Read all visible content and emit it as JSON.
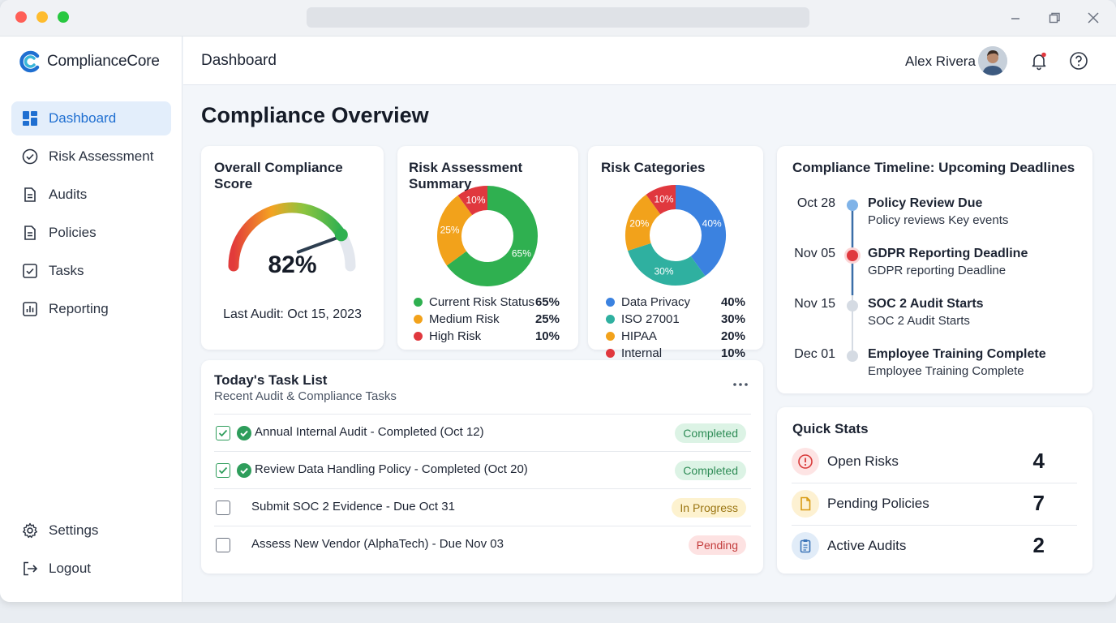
{
  "app": {
    "brand": "ComplianceCore",
    "header_title": "Dashboard",
    "user_name": "Alex Rivera"
  },
  "sidebar": {
    "items": [
      {
        "label": "Dashboard",
        "icon": "grid-icon",
        "active": true
      },
      {
        "label": "Risk Assessment",
        "icon": "check-circle-icon"
      },
      {
        "label": "Audits",
        "icon": "document-icon"
      },
      {
        "label": "Policies",
        "icon": "document-icon"
      },
      {
        "label": "Tasks",
        "icon": "checkbox-icon"
      },
      {
        "label": "Reporting",
        "icon": "bar-chart-icon"
      }
    ],
    "bottom": [
      {
        "label": "Settings",
        "icon": "gear-icon"
      },
      {
        "label": "Logout",
        "icon": "logout-icon"
      }
    ]
  },
  "page": {
    "title": "Compliance Overview"
  },
  "score_card": {
    "title": "Overall Compliance Score",
    "value": "82%",
    "score": 82,
    "last_audit": "Last Audit: Oct 15, 2023"
  },
  "risk_summary": {
    "title": "Risk Assessment Summary",
    "slices": [
      {
        "label": "Current Risk Status",
        "pct_label": "65%",
        "value": 65,
        "color": "#2fb050"
      },
      {
        "label": "Medium Risk",
        "pct_label": "25%",
        "value": 25,
        "color": "#f2a21b"
      },
      {
        "label": "High Risk",
        "pct_label": "10%",
        "value": 10,
        "color": "#e0383e"
      }
    ]
  },
  "risk_categories": {
    "title": "Risk Categories",
    "slices": [
      {
        "label": "Data Privacy",
        "pct_label": "40%",
        "value": 40,
        "color": "#3b82e0"
      },
      {
        "label": "ISO 27001",
        "pct_label": "30%",
        "value": 30,
        "color": "#2fb0a0"
      },
      {
        "label": "HIPAA",
        "pct_label": "20%",
        "value": 20,
        "color": "#f2a21b"
      },
      {
        "label": "Internal",
        "pct_label": "10%",
        "value": 10,
        "color": "#e0383e"
      }
    ]
  },
  "timeline": {
    "title": "Compliance Timeline: Upcoming Deadlines",
    "items": [
      {
        "date": "Oct 28",
        "title": "Policy Review Due",
        "sub": "Policy reviews Key events",
        "dot_color": "#7fb3e8"
      },
      {
        "date": "Nov 05",
        "title": "GDPR Reporting Deadline",
        "sub": "GDPR reporting Deadline",
        "dot_color": "#e0383e"
      },
      {
        "date": "Nov 15",
        "title": "SOC 2 Audit Starts",
        "sub": "SOC 2 Audit Starts",
        "dot_color": "#d5dbe3"
      },
      {
        "date": "Dec 01",
        "title": "Employee Training Complete",
        "sub": "Employee Training Complete",
        "dot_color": "#d5dbe3"
      }
    ]
  },
  "tasks": {
    "title": "Today's Task List",
    "subtitle": "Recent Audit & Compliance Tasks",
    "items": [
      {
        "label": "Annual Internal Audit - Completed (Oct 12)",
        "status": "Completed",
        "done": true
      },
      {
        "label": "Review Data Handling Policy - Completed (Oct 20)",
        "status": "Completed",
        "done": true
      },
      {
        "label": "Submit SOC 2 Evidence - Due Oct 31",
        "status": "In Progress",
        "done": false
      },
      {
        "label": "Assess New Vendor (AlphaTech) - Due Nov 03",
        "status": "Pending",
        "done": false
      }
    ]
  },
  "quick_stats": {
    "title": "Quick Stats",
    "items": [
      {
        "label": "Open Risks",
        "value": "4",
        "icon": "alert-circle-icon"
      },
      {
        "label": "Pending Policies",
        "value": "7",
        "icon": "document-icon"
      },
      {
        "label": "Active Audits",
        "value": "2",
        "icon": "clipboard-icon"
      }
    ]
  }
}
